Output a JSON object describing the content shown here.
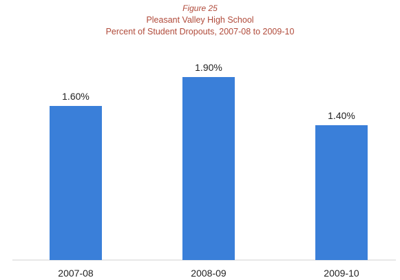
{
  "figure_label": "Figure 25",
  "chart_data": {
    "type": "bar",
    "title": "Pleasant Valley High School",
    "subtitle": "Percent of Student Dropouts, 2007-08 to 2009-10",
    "categories": [
      "2007-08",
      "2008-09",
      "2009-10"
    ],
    "values": [
      1.6,
      1.9,
      1.4
    ],
    "data_labels": [
      "1.60%",
      "1.90%",
      "1.40%"
    ],
    "xlabel": "",
    "ylabel": "",
    "ylim": [
      0,
      2.4
    ],
    "grid": false,
    "legend": "none",
    "bar_color": "#3a7fd9"
  }
}
